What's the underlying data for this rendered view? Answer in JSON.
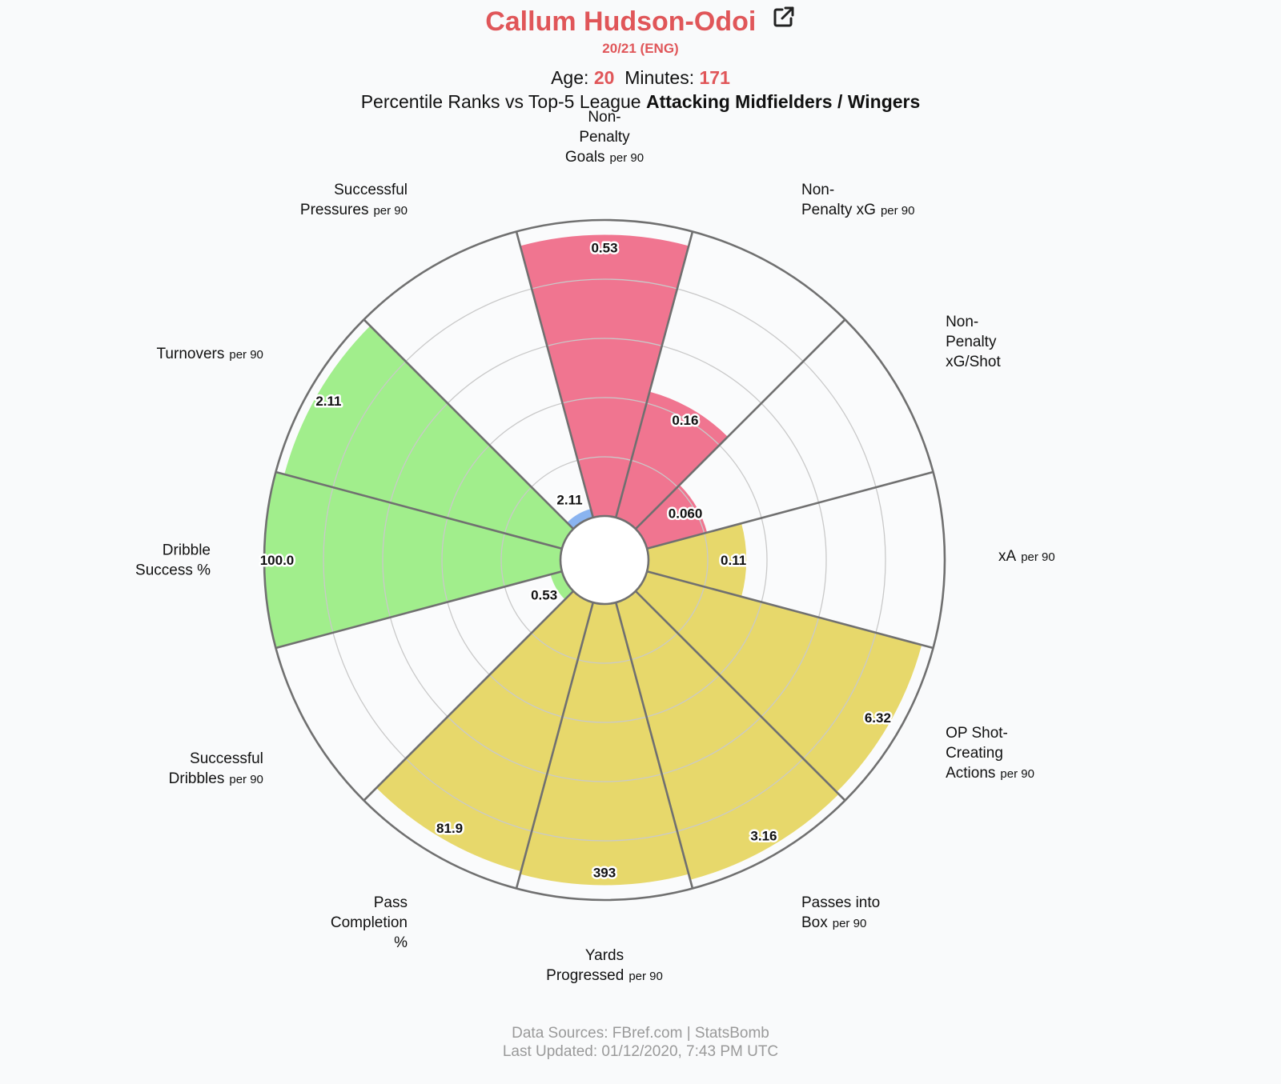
{
  "header": {
    "player_name": "Callum Hudson-Odoi",
    "season": "20/21 (ENG)",
    "age_label": "Age:",
    "age_value": "20",
    "minutes_label": "Minutes:",
    "minutes_value": "171",
    "ranks_prefix": "Percentile Ranks vs Top-5 League",
    "ranks_group": "Attacking Midfielders / Wingers"
  },
  "chart_data": {
    "type": "polar-bar",
    "scale": "percentile",
    "rlim": [
      0,
      100
    ],
    "gridlines": true,
    "categories": [
      {
        "label": [
          "Non-",
          "Penalty",
          "Goals"
        ],
        "unit": "per 90",
        "value": "0.53",
        "percentile": 95,
        "group": "attacking"
      },
      {
        "label": [
          "Non-",
          "Penalty xG"
        ],
        "unit": "per 90",
        "value": "0.16",
        "percentile": 44,
        "group": "attacking"
      },
      {
        "label": [
          "Non-",
          "Penalty",
          "xG/Shot"
        ],
        "unit": "",
        "value": "0.060",
        "percentile": 21,
        "group": "attacking"
      },
      {
        "label": [
          "xA"
        ],
        "unit": "per 90",
        "value": "0.11",
        "percentile": 33,
        "group": "possession"
      },
      {
        "label": [
          "OP Shot-",
          "Creating",
          "Actions"
        ],
        "unit": "per 90",
        "value": "6.32",
        "percentile": 96,
        "group": "possession"
      },
      {
        "label": [
          "Passes into",
          "Box"
        ],
        "unit": "per 90",
        "value": "3.16",
        "percentile": 97,
        "group": "possession"
      },
      {
        "label": [
          "Yards",
          "Progressed"
        ],
        "unit": "per 90",
        "value": "393",
        "percentile": 95,
        "group": "possession"
      },
      {
        "label": [
          "Pass",
          "Completion",
          "%"
        ],
        "unit": "",
        "value": "81.9",
        "percentile": 94,
        "group": "possession"
      },
      {
        "label": [
          "Successful",
          "Dribbles"
        ],
        "unit": "per 90",
        "value": "0.53",
        "percentile": 4,
        "group": "defending"
      },
      {
        "label": [
          "Dribble",
          "Success %"
        ],
        "unit": "",
        "value": "100.0",
        "percentile": 100,
        "group": "defending"
      },
      {
        "label": [
          "Turnovers"
        ],
        "unit": "per 90",
        "value": "2.11",
        "percentile": 97,
        "group": "defending"
      },
      {
        "label": [
          "Successful",
          "Pressures"
        ],
        "unit": "per 90",
        "value": "2.11",
        "percentile": 3,
        "group": "pressing"
      }
    ],
    "group_colors": {
      "attacking": "#f07590",
      "possession": "#e7d86b",
      "defending": "#a1ee8c",
      "pressing": "#8ab4f0"
    }
  },
  "footer": {
    "line1": "Data Sources: FBref.com | StatsBomb",
    "line2": "Last Updated: 01/12/2020, 7:43 PM UTC"
  },
  "icons": {
    "external_link": "external-link-icon"
  }
}
